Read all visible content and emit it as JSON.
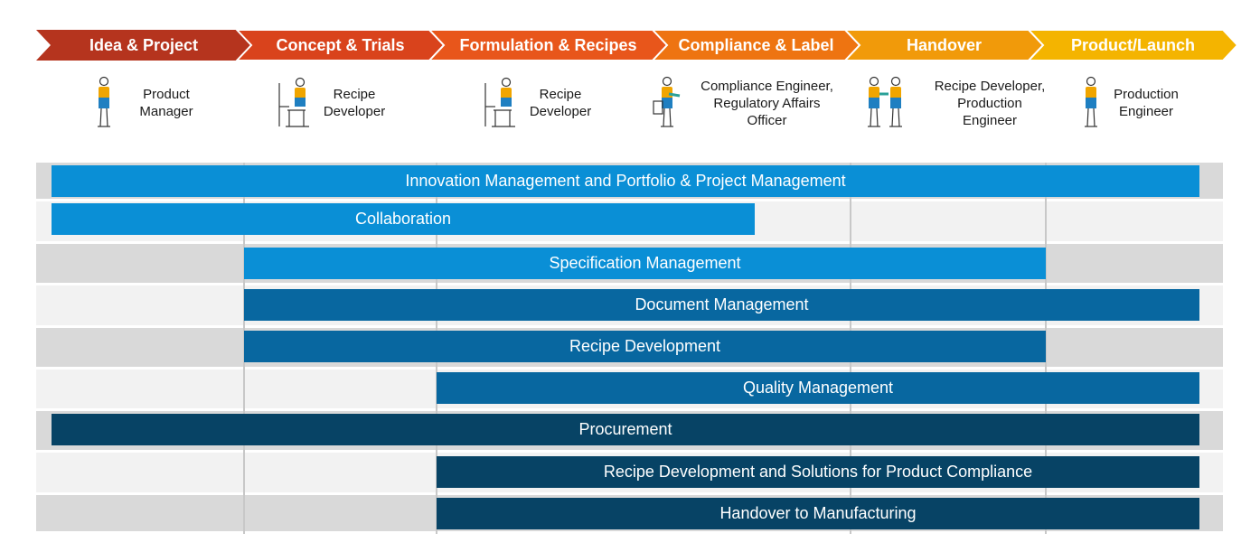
{
  "colors": {
    "phase_gradient": [
      "#b5341e",
      "#d9431c",
      "#e8561b",
      "#ee7411",
      "#f19a0a",
      "#f4b400"
    ],
    "bar_light_blue": "#0a8fd6",
    "bar_mid_blue": "#0867a0",
    "bar_dark_blue": "#074365",
    "row_dark": "#d9d9d9",
    "row_light": "#f2f2f2",
    "icon_person_colors": [
      "#f0a500",
      "#1f7fc1"
    ]
  },
  "phases": [
    {
      "label": "Idea & Project"
    },
    {
      "label": "Concept & Trials"
    },
    {
      "label": "Formulation & Recipes"
    },
    {
      "label": "Compliance & Label"
    },
    {
      "label": "Handover"
    },
    {
      "label": "Product/Launch"
    }
  ],
  "roles": [
    {
      "lines": [
        "Product",
        "Manager"
      ],
      "icon": "standing-person-icon"
    },
    {
      "lines": [
        "Recipe",
        "Developer"
      ],
      "icon": "seated-person-at-desk-icon"
    },
    {
      "lines": [
        "Recipe",
        "Developer"
      ],
      "icon": "seated-person-at-desk-icon"
    },
    {
      "lines": [
        "Compliance Engineer,",
        "Regulatory Affairs",
        "Officer"
      ],
      "icon": "person-at-machine-icon"
    },
    {
      "lines": [
        "Recipe Developer,",
        "Production",
        "Engineer"
      ],
      "icon": "two-people-icon"
    },
    {
      "lines": [
        "Production",
        "Engineer"
      ],
      "icon": "standing-person-icon"
    }
  ],
  "capabilities": [
    {
      "label": "Innovation Management and Portfolio & Project Management",
      "start_phase": 1,
      "end_phase": 6,
      "color": "light"
    },
    {
      "label": "Collaboration",
      "start_phase": 1,
      "end_phase": 3.5,
      "color": "light"
    },
    {
      "label": "Specification Management",
      "start_phase": 2,
      "end_phase": 5,
      "color": "light"
    },
    {
      "label": "Document Management",
      "start_phase": 2,
      "end_phase": 6,
      "color": "mid"
    },
    {
      "label": "Recipe Development",
      "start_phase": 2,
      "end_phase": 5,
      "color": "mid"
    },
    {
      "label": "Quality Management",
      "start_phase": 3,
      "end_phase": 6,
      "color": "mid"
    },
    {
      "label": "Procurement",
      "start_phase": 1,
      "end_phase": 6,
      "color": "dark"
    },
    {
      "label": "Recipe Development and Solutions for Product Compliance",
      "start_phase": 3,
      "end_phase": 6,
      "color": "dark"
    },
    {
      "label": "Handover to Manufacturing",
      "start_phase": 3,
      "end_phase": 6,
      "color": "dark"
    }
  ]
}
